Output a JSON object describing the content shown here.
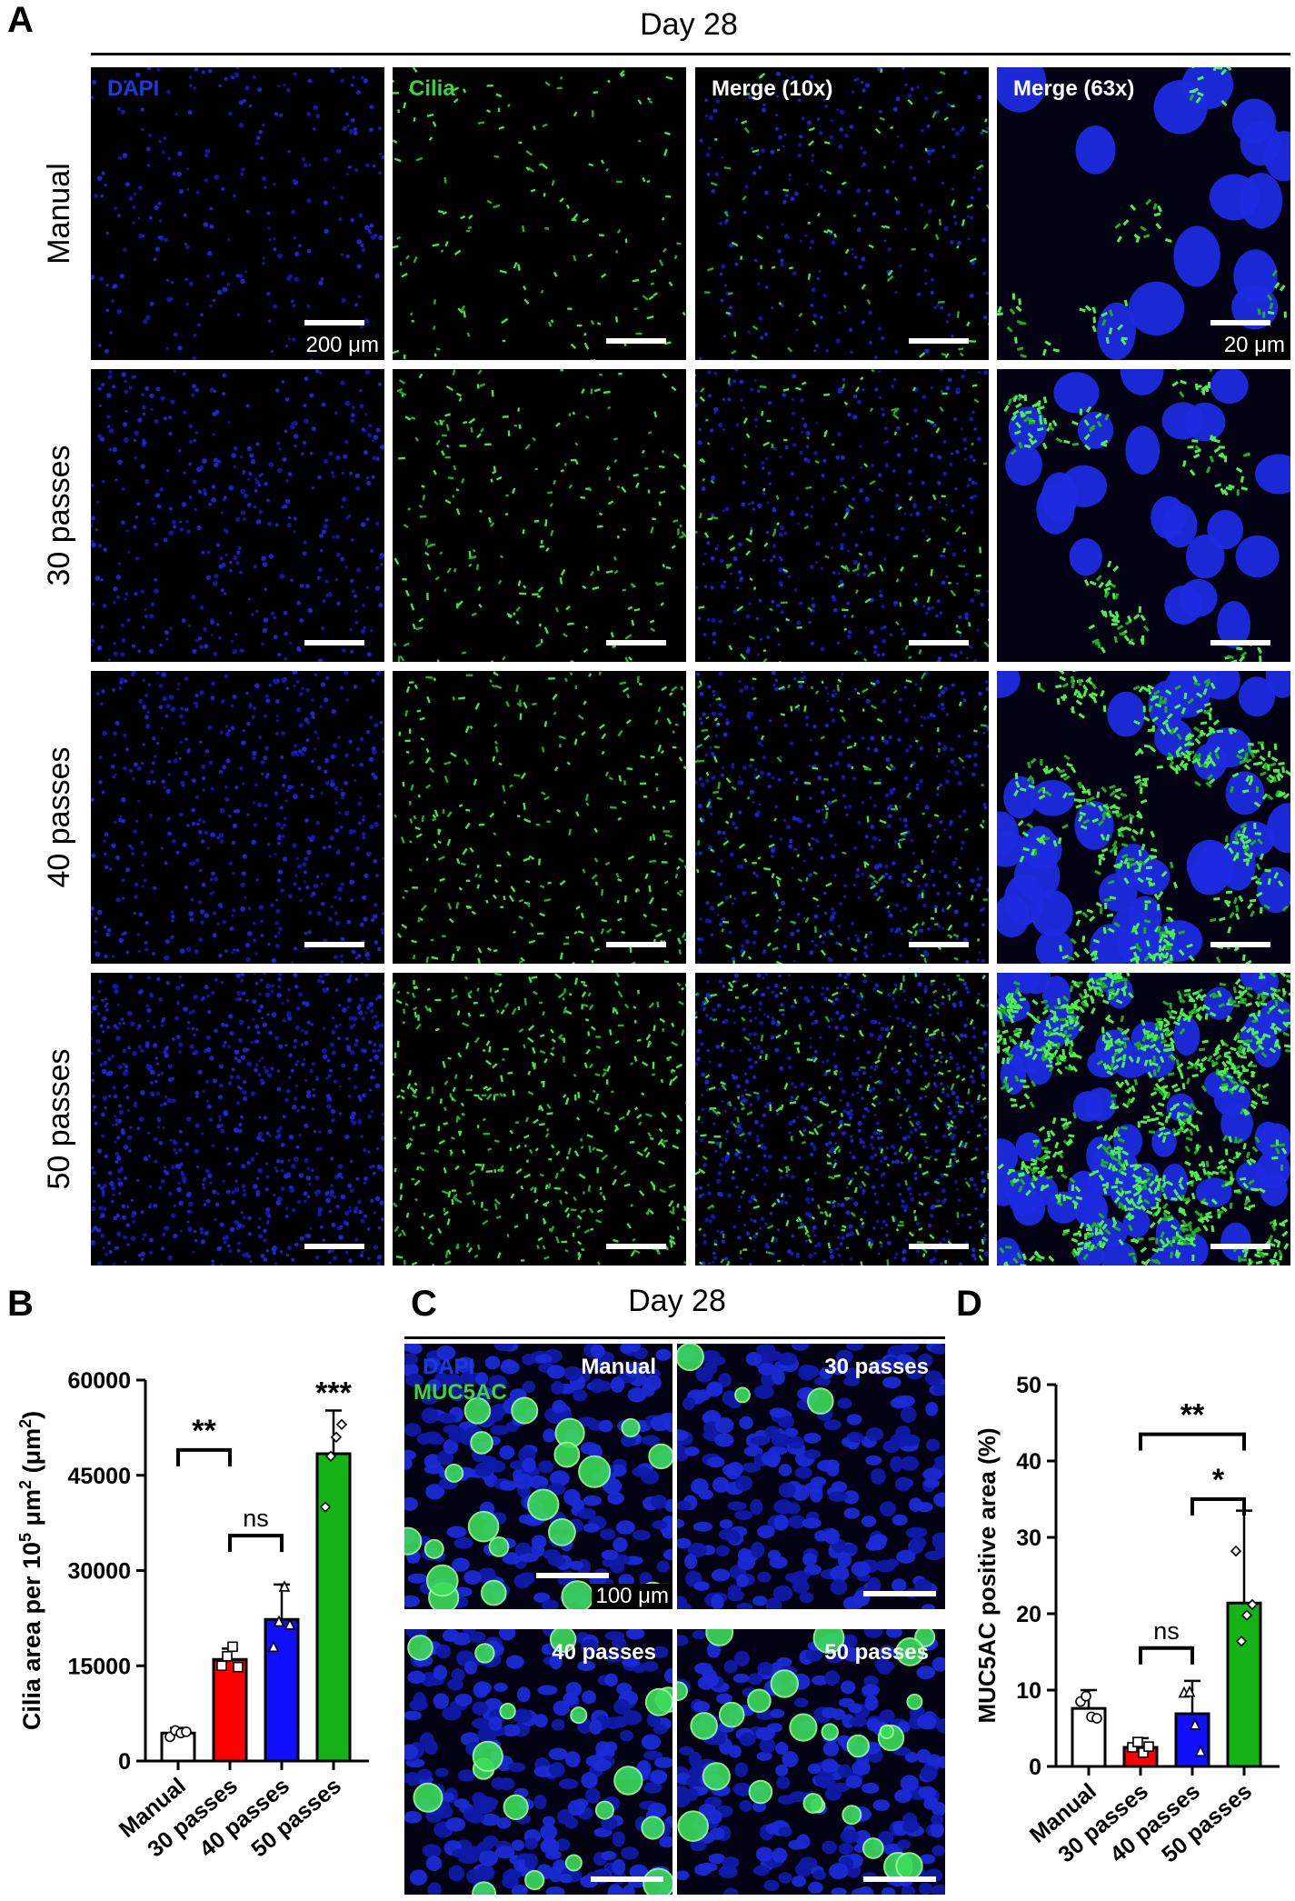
{
  "panel_a": {
    "letter": "A",
    "title": "Day 28",
    "columns": [
      "DAPI",
      "Cilia",
      "Merge (10x)",
      "Merge (63x)"
    ],
    "rows": [
      "Manual",
      "30 passes",
      "40 passes",
      "50 passes"
    ],
    "scalebar_10x": "200 μm",
    "scalebar_63x": "20 μm"
  },
  "panel_b": {
    "letter": "B"
  },
  "panel_c": {
    "letter": "C",
    "title": "Day 28",
    "channel_dapi": "DAPI",
    "channel_muc": "MUC5AC",
    "images": [
      "Manual",
      "30 passes",
      "40 passes",
      "50 passes"
    ],
    "scalebar": "100 μm"
  },
  "panel_d": {
    "letter": "D"
  },
  "colors": {
    "manual": "#ffffff",
    "p30": "#ff0000",
    "p40": "#1010ff",
    "p50": "#16b316"
  },
  "chart_data": [
    {
      "type": "bar",
      "categories": [
        "Manual",
        "30 passes",
        "40 passes",
        "50 passes"
      ],
      "values": [
        4400,
        16000,
        22300,
        48400
      ],
      "errors": [
        800,
        1700,
        5500,
        6800
      ],
      "points": [
        [
          3800,
          4800,
          4400,
          4600
        ],
        [
          15000,
          16500,
          18000,
          14800
        ],
        [
          18000,
          22000,
          27500,
          21500
        ],
        [
          40000,
          48000,
          51000,
          53000
        ]
      ],
      "ylabel_main": "Cilia area per 10",
      "ylabel_sup1": "5",
      "ylabel_mid": " μm",
      "ylabel_sup2": "2",
      "ylabel_end": " (μm",
      "ylabel_sup3": "2",
      "ylabel_close": ")",
      "yticks": [
        "0",
        "15000",
        "30000",
        "45000",
        "60000"
      ],
      "ylim": [
        0,
        60000
      ],
      "significance": [
        {
          "from": 0,
          "to": 1,
          "label": "**"
        },
        {
          "from": 1,
          "to": 2,
          "label": "ns"
        },
        {
          "on": 3,
          "label": "***"
        }
      ]
    },
    {
      "type": "bar",
      "categories": [
        "Manual",
        "30 passes",
        "40 passes",
        "50 passes"
      ],
      "values": [
        7.6,
        2.5,
        6.9,
        21.4
      ],
      "errors": [
        2.4,
        1.2,
        4.3,
        12.1
      ],
      "points": [
        [
          8.5,
          9.2,
          6.5,
          6.3
        ],
        [
          2.5,
          3.2,
          1.8,
          2.6
        ],
        [
          9.7,
          9.8,
          5.5,
          2.0
        ],
        [
          28.2,
          16.4,
          19.8,
          21.2
        ]
      ],
      "ylabel": "MUC5AC positive area (%)",
      "yticks": [
        "0",
        "10",
        "20",
        "30",
        "40",
        "50"
      ],
      "ylim": [
        0,
        50
      ],
      "significance": [
        {
          "from": 1,
          "to": 3,
          "label": "**"
        },
        {
          "from": 2,
          "to": 3,
          "label": "*"
        },
        {
          "from": 1,
          "to": 2,
          "label": "ns"
        }
      ]
    }
  ]
}
